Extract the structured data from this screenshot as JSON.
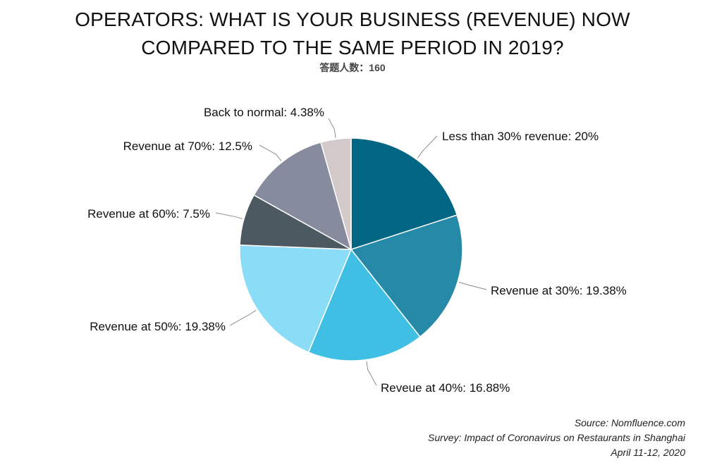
{
  "chart_data": {
    "type": "pie",
    "title_lines": [
      "OPERATORS: WHAT IS YOUR BUSINESS (REVENUE) NOW",
      "COMPARED TO THE SAME PERIOD IN 2019?"
    ],
    "subtitle": "答题人数：160",
    "slices": [
      {
        "label": "Less than 30% revenue: 20%",
        "value": 20,
        "color": "#006683"
      },
      {
        "label": "Revenue at 30%: 19.38%",
        "value": 19.38,
        "color": "#2689a8"
      },
      {
        "label": "Reveue at 40%: 16.88%",
        "value": 16.88,
        "color": "#3fbfe4"
      },
      {
        "label": "Revenue at 50%: 19.38%",
        "value": 19.38,
        "color": "#8bdcf6"
      },
      {
        "label": "Revenue at 60%: 7.5%",
        "value": 7.5,
        "color": "#4d5961"
      },
      {
        "label": "Revenue at 70%: 12.5%",
        "value": 12.5,
        "color": "#868b9d"
      },
      {
        "label": "Back to normal: 4.38%",
        "value": 4.38,
        "color": "#d3c9c9"
      }
    ],
    "start_angle": "12 o'clock",
    "direction": "clockwise",
    "legend": "none"
  },
  "footer": {
    "source": "Source: Nomfluence.com",
    "survey": "Survey: Impact of Coronavirus on Restaurants in Shanghai",
    "date": "April 11-12, 2020"
  }
}
